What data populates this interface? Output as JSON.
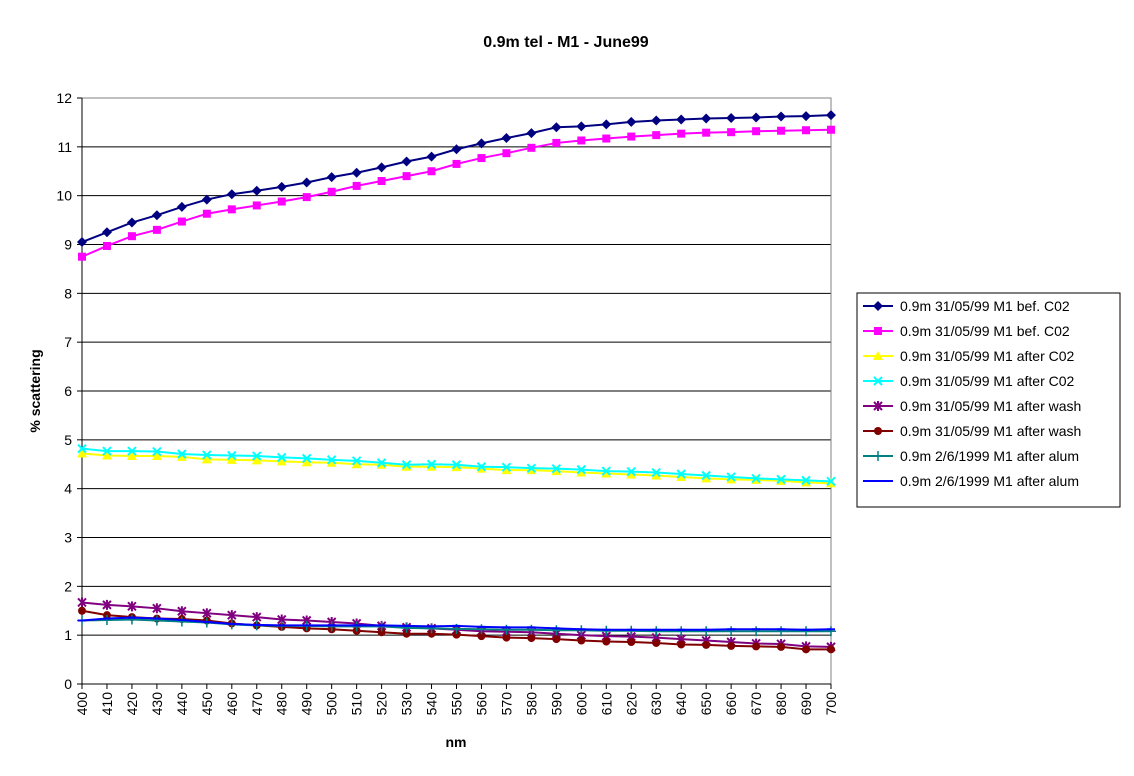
{
  "chart_data": {
    "type": "line",
    "title": "0.9m tel - M1 - June99",
    "xlabel": "nm",
    "ylabel": "% scattering",
    "ylim": [
      0,
      12
    ],
    "yticks": [
      0,
      1,
      2,
      3,
      4,
      5,
      6,
      7,
      8,
      9,
      10,
      11,
      12
    ],
    "grid": "horizontal",
    "legend_position": "right",
    "x": [
      400,
      410,
      420,
      430,
      440,
      450,
      460,
      470,
      480,
      490,
      500,
      510,
      520,
      530,
      540,
      550,
      560,
      570,
      580,
      590,
      600,
      610,
      620,
      630,
      640,
      650,
      660,
      670,
      680,
      690,
      700
    ],
    "series": [
      {
        "name": "0.9m 31/05/99 M1 bef. C02",
        "color": "#000080",
        "marker": "diamond",
        "values": [
          9.05,
          9.25,
          9.45,
          9.6,
          9.77,
          9.92,
          10.03,
          10.1,
          10.18,
          10.27,
          10.38,
          10.47,
          10.58,
          10.7,
          10.8,
          10.95,
          11.07,
          11.18,
          11.28,
          11.4,
          11.42,
          11.46,
          11.51,
          11.54,
          11.56,
          11.58,
          11.59,
          11.6,
          11.62,
          11.63,
          11.65
        ]
      },
      {
        "name": "0.9m 31/05/99 M1 bef. C02",
        "color": "#ff00ff",
        "marker": "square",
        "values": [
          8.75,
          8.97,
          9.17,
          9.3,
          9.47,
          9.63,
          9.72,
          9.8,
          9.88,
          9.97,
          10.08,
          10.2,
          10.3,
          10.4,
          10.5,
          10.65,
          10.77,
          10.87,
          10.98,
          11.08,
          11.13,
          11.17,
          11.21,
          11.24,
          11.27,
          11.29,
          11.3,
          11.32,
          11.33,
          11.34,
          11.35
        ]
      },
      {
        "name": "0.9m 31/05/99 M1 after C02",
        "color": "#ffff00",
        "marker": "triangle",
        "values": [
          4.72,
          4.68,
          4.67,
          4.67,
          4.65,
          4.6,
          4.59,
          4.58,
          4.56,
          4.54,
          4.53,
          4.5,
          4.49,
          4.45,
          4.45,
          4.44,
          4.41,
          4.38,
          4.38,
          4.36,
          4.33,
          4.31,
          4.29,
          4.27,
          4.24,
          4.21,
          4.19,
          4.18,
          4.16,
          4.13,
          4.11
        ]
      },
      {
        "name": "0.9m 31/05/99 M1 after C02",
        "color": "#00ffff",
        "marker": "x",
        "values": [
          4.82,
          4.77,
          4.77,
          4.76,
          4.71,
          4.69,
          4.68,
          4.67,
          4.64,
          4.62,
          4.59,
          4.57,
          4.53,
          4.49,
          4.5,
          4.49,
          4.45,
          4.44,
          4.42,
          4.41,
          4.39,
          4.36,
          4.35,
          4.33,
          4.3,
          4.27,
          4.24,
          4.21,
          4.19,
          4.17,
          4.15
        ]
      },
      {
        "name": "0.9m 31/05/99 M1 after wash",
        "color": "#800080",
        "marker": "star",
        "values": [
          1.67,
          1.62,
          1.59,
          1.55,
          1.49,
          1.45,
          1.41,
          1.37,
          1.32,
          1.3,
          1.27,
          1.24,
          1.19,
          1.16,
          1.14,
          1.11,
          1.08,
          1.07,
          1.06,
          1.03,
          1.0,
          0.98,
          0.97,
          0.95,
          0.92,
          0.89,
          0.86,
          0.83,
          0.82,
          0.77,
          0.76
        ]
      },
      {
        "name": "0.9m 31/05/99 M1 after wash",
        "color": "#800000",
        "marker": "circle",
        "values": [
          1.5,
          1.41,
          1.37,
          1.34,
          1.33,
          1.3,
          1.24,
          1.2,
          1.17,
          1.14,
          1.12,
          1.09,
          1.06,
          1.03,
          1.03,
          1.01,
          0.98,
          0.95,
          0.94,
          0.92,
          0.89,
          0.87,
          0.86,
          0.84,
          0.81,
          0.8,
          0.78,
          0.77,
          0.76,
          0.71,
          0.71
        ]
      },
      {
        "name": "0.9m 2/6/1999 M1 after alum",
        "color": "#008080",
        "marker": "plus",
        "values": [
          1.3,
          1.31,
          1.32,
          1.3,
          1.28,
          1.26,
          1.22,
          1.2,
          1.19,
          1.19,
          1.18,
          1.18,
          1.18,
          1.15,
          1.14,
          1.13,
          1.12,
          1.11,
          1.11,
          1.1,
          1.1,
          1.09,
          1.09,
          1.08,
          1.08,
          1.08,
          1.08,
          1.08,
          1.08,
          1.08,
          1.08
        ]
      },
      {
        "name": "0.9m 2/6/1999 M1 after alum",
        "color": "#0000ff",
        "marker": "dash",
        "values": [
          1.3,
          1.34,
          1.36,
          1.34,
          1.31,
          1.27,
          1.23,
          1.21,
          1.2,
          1.2,
          1.2,
          1.2,
          1.2,
          1.19,
          1.18,
          1.19,
          1.17,
          1.16,
          1.16,
          1.14,
          1.12,
          1.11,
          1.11,
          1.11,
          1.11,
          1.11,
          1.12,
          1.12,
          1.12,
          1.11,
          1.12
        ]
      }
    ]
  }
}
